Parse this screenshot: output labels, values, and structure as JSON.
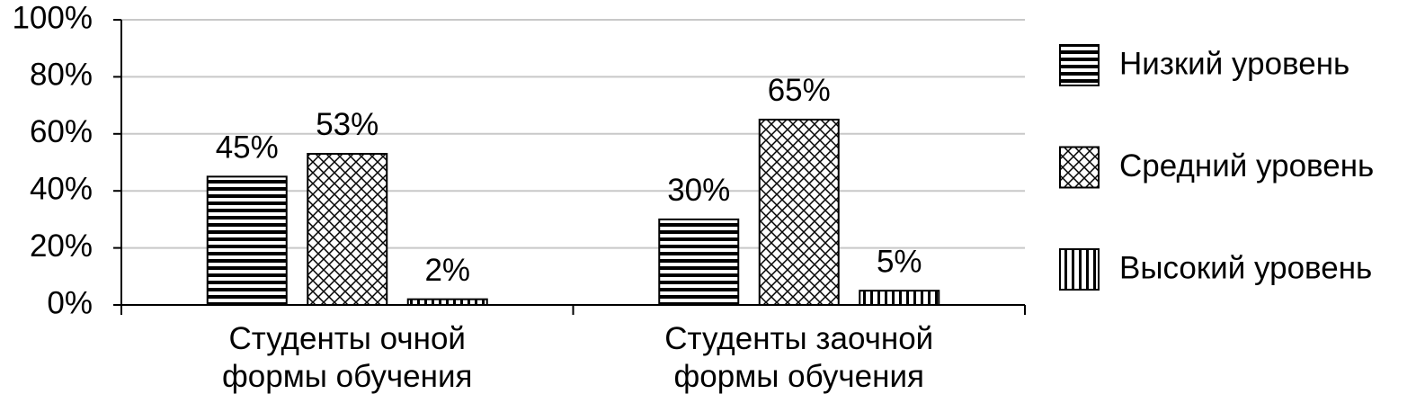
{
  "chart_data": {
    "type": "bar",
    "categories": [
      "Студенты очной формы обучения",
      "Студенты заочной формы обучения"
    ],
    "series": [
      {
        "name": "Низкий уровень",
        "color": "#000000",
        "hatch": "horizontal",
        "values": [
          45,
          30
        ],
        "value_labels": [
          "45%",
          "30%"
        ]
      },
      {
        "name": "Средний уровень",
        "color": "#000000",
        "hatch": "cross",
        "values": [
          53,
          65
        ],
        "value_labels": [
          "53%",
          "65%"
        ]
      },
      {
        "name": "Высокий уровень",
        "color": "#000000",
        "hatch": "vertical",
        "values": [
          2,
          5
        ],
        "value_labels": [
          "2%",
          "5%"
        ]
      }
    ],
    "ylim": [
      0,
      100
    ],
    "yticks": [
      {
        "value": 0,
        "label": "0%"
      },
      {
        "value": 20,
        "label": "20%"
      },
      {
        "value": 40,
        "label": "40%"
      },
      {
        "value": 60,
        "label": "60%"
      },
      {
        "value": 80,
        "label": "80%"
      },
      {
        "value": 100,
        "label": "100%"
      }
    ],
    "grid": true,
    "legend": "right"
  }
}
